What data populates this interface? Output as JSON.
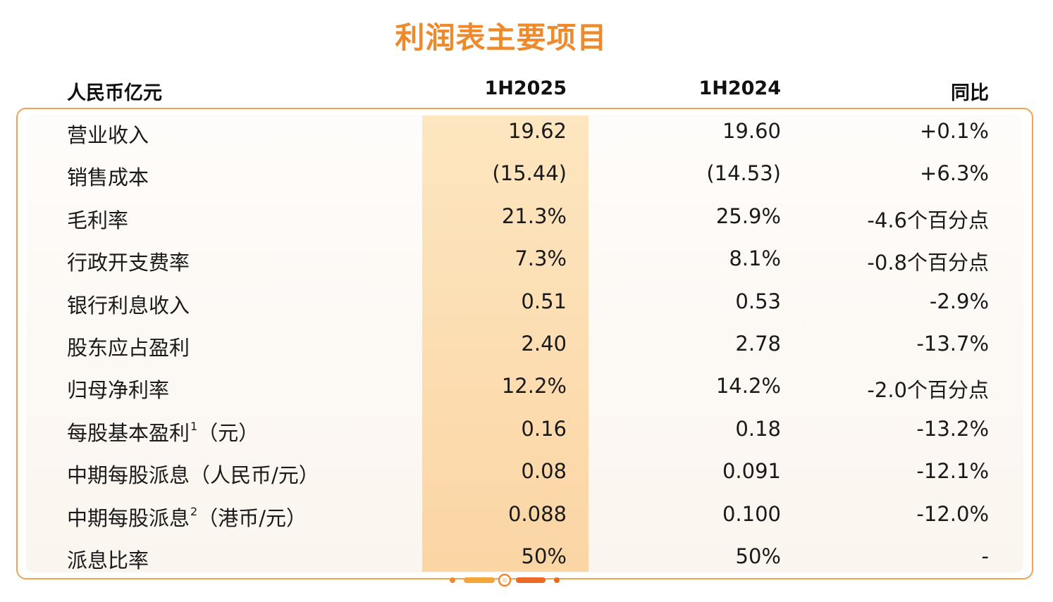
{
  "title": "利润表主要项目",
  "header": {
    "label": "人民币亿元",
    "col_a": "1H2025",
    "col_b": "1H2024",
    "col_c": "同比"
  },
  "rows": [
    {
      "label": "营业收入",
      "sup": "",
      "suffix": "",
      "a": "19.62",
      "b": "19.60",
      "c": "+0.1%"
    },
    {
      "label": "销售成本",
      "sup": "",
      "suffix": "",
      "a": "(15.44)",
      "b": "(14.53)",
      "c": "+6.3%"
    },
    {
      "label": "毛利率",
      "sup": "",
      "suffix": "",
      "a": "21.3%",
      "b": "25.9%",
      "c": "-4.6个百分点"
    },
    {
      "label": "行政开支费率",
      "sup": "",
      "suffix": "",
      "a": "7.3%",
      "b": "8.1%",
      "c": "-0.8个百分点"
    },
    {
      "label": "银行利息收入",
      "sup": "",
      "suffix": "",
      "a": "0.51",
      "b": "0.53",
      "c": "-2.9%"
    },
    {
      "label": "股东应占盈利",
      "sup": "",
      "suffix": "",
      "a": "2.40",
      "b": "2.78",
      "c": "-13.7%"
    },
    {
      "label": "归母净利率",
      "sup": "",
      "suffix": "",
      "a": "12.2%",
      "b": "14.2%",
      "c": "-2.0个百分点"
    },
    {
      "label": "每股基本盈利",
      "sup": "1",
      "suffix": "（元）",
      "a": "0.16",
      "b": "0.18",
      "c": "-13.2%"
    },
    {
      "label": "中期每股派息（人民币/元）",
      "sup": "",
      "suffix": "",
      "a": "0.08",
      "b": "0.091",
      "c": "-12.1%"
    },
    {
      "label": "中期每股派息",
      "sup": "2",
      "suffix": "（港币/元）",
      "a": "0.088",
      "b": "0.100",
      "c": "-12.0%"
    },
    {
      "label": "派息比率",
      "sup": "",
      "suffix": "",
      "a": "50%",
      "b": "50%",
      "c": "-"
    }
  ],
  "colors": {
    "accent": "#ee8a2c",
    "border": "#f0a350",
    "highlight": "#fde0b5"
  }
}
